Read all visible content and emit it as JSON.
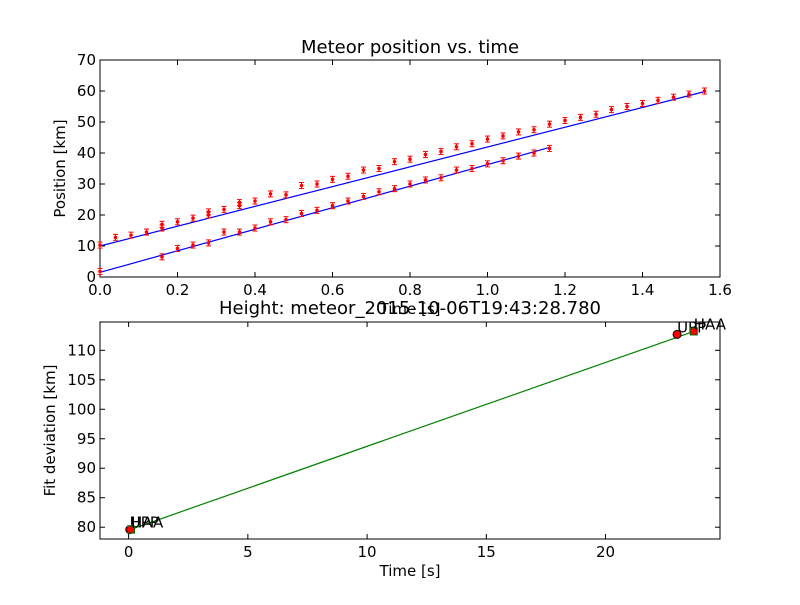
{
  "chart_data": [
    {
      "type": "scatter",
      "title": "Meteor position vs. time",
      "xlabel": "Time [s]",
      "ylabel": "Position [km]",
      "xlim": [
        0,
        1.6
      ],
      "ylim": [
        0,
        70
      ],
      "xticks": [
        "0.0",
        "0.2",
        "0.4",
        "0.6",
        "0.8",
        "1.0",
        "1.2",
        "1.4",
        "1.6"
      ],
      "yticks": [
        "0",
        "10",
        "20",
        "30",
        "40",
        "50",
        "60",
        "70"
      ],
      "grid": false,
      "colors": {
        "points": "#ff0000",
        "errorbars": "#ff0000",
        "fit": "#0000ff"
      },
      "series": [
        {
          "points": [
            [
              0.0,
              10.3
            ],
            [
              0.04,
              12.8
            ],
            [
              0.08,
              13.5
            ],
            [
              0.12,
              14.5
            ],
            [
              0.16,
              15.8
            ],
            [
              0.16,
              17.0
            ],
            [
              0.2,
              17.8
            ],
            [
              0.24,
              19.0
            ],
            [
              0.28,
              20.0
            ],
            [
              0.28,
              21.0
            ],
            [
              0.32,
              21.8
            ],
            [
              0.36,
              23.0
            ],
            [
              0.36,
              24.0
            ],
            [
              0.4,
              24.5
            ],
            [
              0.44,
              26.8
            ],
            [
              0.48,
              26.5
            ],
            [
              0.52,
              29.5
            ],
            [
              0.56,
              30.0
            ],
            [
              0.6,
              31.5
            ],
            [
              0.64,
              32.5
            ],
            [
              0.68,
              34.5
            ],
            [
              0.72,
              35.0
            ],
            [
              0.76,
              37.2
            ],
            [
              0.8,
              38.0
            ],
            [
              0.84,
              39.5
            ],
            [
              0.88,
              40.5
            ],
            [
              0.92,
              42.0
            ],
            [
              0.96,
              43.0
            ],
            [
              1.0,
              44.5
            ],
            [
              1.04,
              45.5
            ],
            [
              1.08,
              46.8
            ],
            [
              1.12,
              47.5
            ],
            [
              1.16,
              49.3
            ],
            [
              1.2,
              50.5
            ],
            [
              1.24,
              51.5
            ],
            [
              1.28,
              52.5
            ],
            [
              1.32,
              54.0
            ],
            [
              1.36,
              55.0
            ],
            [
              1.4,
              56.0
            ],
            [
              1.44,
              57.0
            ],
            [
              1.48,
              58.0
            ],
            [
              1.52,
              59.0
            ],
            [
              1.56,
              60.0
            ]
          ],
          "fit": [
            [
              0.0,
              10.0
            ],
            [
              1.56,
              59.8
            ]
          ]
        },
        {
          "points": [
            [
              0.0,
              1.8
            ],
            [
              0.16,
              6.5
            ],
            [
              0.2,
              9.2
            ],
            [
              0.24,
              10.3
            ],
            [
              0.28,
              11.0
            ],
            [
              0.32,
              14.5
            ],
            [
              0.36,
              14.5
            ],
            [
              0.4,
              15.8
            ],
            [
              0.44,
              17.8
            ],
            [
              0.48,
              18.5
            ],
            [
              0.52,
              20.5
            ],
            [
              0.56,
              21.5
            ],
            [
              0.6,
              23.0
            ],
            [
              0.64,
              24.5
            ],
            [
              0.68,
              26.0
            ],
            [
              0.72,
              27.5
            ],
            [
              0.76,
              28.5
            ],
            [
              0.8,
              30.0
            ],
            [
              0.84,
              31.3
            ],
            [
              0.88,
              32.0
            ],
            [
              0.92,
              34.5
            ],
            [
              0.96,
              35.0
            ],
            [
              1.0,
              36.5
            ],
            [
              1.04,
              37.5
            ],
            [
              1.08,
              39.0
            ],
            [
              1.12,
              40.0
            ],
            [
              1.16,
              41.5
            ]
          ],
          "fit": [
            [
              0.0,
              1.5
            ],
            [
              1.16,
              41.8
            ]
          ]
        }
      ]
    },
    {
      "type": "scatter",
      "title": "Height: meteor_2015-10-06T19:43:28.780",
      "xlabel": "Time [s]",
      "ylabel": "Fit deviation [km]",
      "xlim": [
        -1.2,
        24.8
      ],
      "ylim": [
        78,
        114.8
      ],
      "xticks": [
        "0",
        "5",
        "10",
        "15",
        "20"
      ],
      "yticks": [
        "80",
        "85",
        "90",
        "95",
        "100",
        "105",
        "110"
      ],
      "grid": false,
      "colors": {
        "fit": "#008000",
        "points": "#ff0000",
        "marker_edge": "#000000",
        "square_edge": "#006400"
      },
      "line": [
        [
          0.0,
          79.5
        ],
        [
          23.7,
          113.2
        ]
      ],
      "points": [
        {
          "label": "UPP",
          "x": 0.05,
          "y": 79.6,
          "marker": "circle"
        },
        {
          "label": "HAA",
          "x": 0.1,
          "y": 79.6,
          "marker": "square"
        },
        {
          "label": "UPP",
          "x": 23.0,
          "y": 112.7,
          "marker": "circle"
        },
        {
          "label": "HAA",
          "x": 23.7,
          "y": 113.2,
          "marker": "square"
        }
      ]
    }
  ]
}
